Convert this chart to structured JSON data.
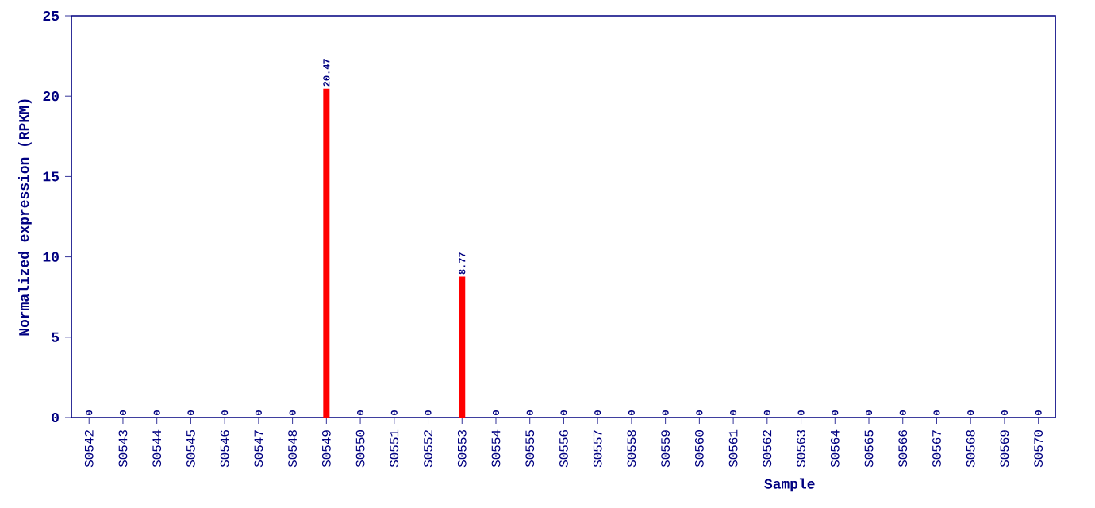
{
  "chart_data": {
    "type": "bar",
    "xlabel": "Sample",
    "ylabel": "Normalized expression (RPKM)",
    "categories": [
      "S0542",
      "S0543",
      "S0544",
      "S0545",
      "S0546",
      "S0547",
      "S0548",
      "S0549",
      "S0550",
      "S0551",
      "S0552",
      "S0553",
      "S0554",
      "S0555",
      "S0556",
      "S0557",
      "S0558",
      "S0559",
      "S0560",
      "S0561",
      "S0562",
      "S0563",
      "S0564",
      "S0565",
      "S0566",
      "S0567",
      "S0568",
      "S0569",
      "S0570"
    ],
    "values": [
      0,
      0,
      0,
      0,
      0,
      0,
      0,
      20.47,
      0,
      0,
      0,
      8.77,
      0,
      0,
      0,
      0,
      0,
      0,
      0,
      0,
      0,
      0,
      0,
      0,
      0,
      0,
      0,
      0,
      0
    ],
    "color": "#ff0000",
    "data_labels": true,
    "ylim": [
      0,
      25
    ],
    "yticks": [
      0,
      5,
      10,
      15,
      20,
      25
    ],
    "grid": false
  }
}
